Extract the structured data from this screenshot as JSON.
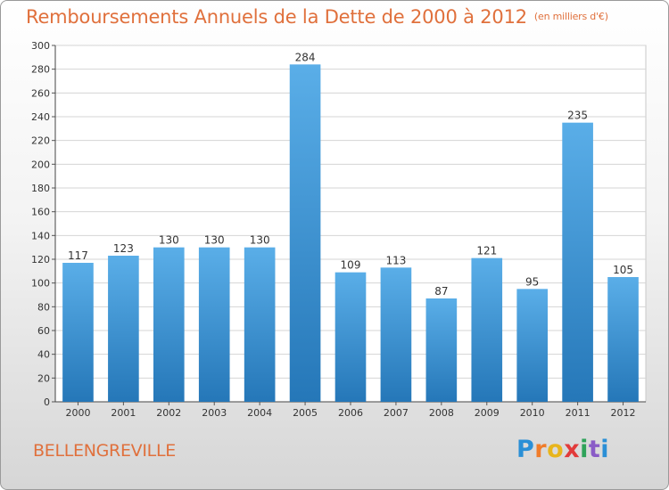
{
  "header": {
    "title": "Remboursements Annuels de la Dette de 2000 à 2012",
    "unit": "(en milliers d'€)"
  },
  "footer": {
    "commune": "BELLENGREVILLE",
    "logo": [
      "P",
      "r",
      "o",
      "x",
      "i",
      "t",
      "i"
    ]
  },
  "colors": {
    "title": "#e0703c",
    "bar_top": "#5aaee8",
    "bar_bottom": "#2577b8",
    "grid": "#d4d4d4"
  },
  "chart_data": {
    "type": "bar",
    "title": "Remboursements Annuels de la Dette de 2000 à 2012",
    "categories": [
      "2000",
      "2001",
      "2002",
      "2003",
      "2004",
      "2005",
      "2006",
      "2007",
      "2008",
      "2009",
      "2010",
      "2011",
      "2012"
    ],
    "values": [
      117,
      123,
      130,
      130,
      130,
      284,
      109,
      113,
      87,
      121,
      95,
      235,
      105
    ],
    "ylim": [
      0,
      300
    ],
    "yticks": [
      0,
      20,
      40,
      60,
      80,
      100,
      120,
      140,
      160,
      180,
      200,
      220,
      240,
      260,
      280,
      300
    ],
    "grid": true,
    "xlabel": "",
    "ylabel": ""
  }
}
